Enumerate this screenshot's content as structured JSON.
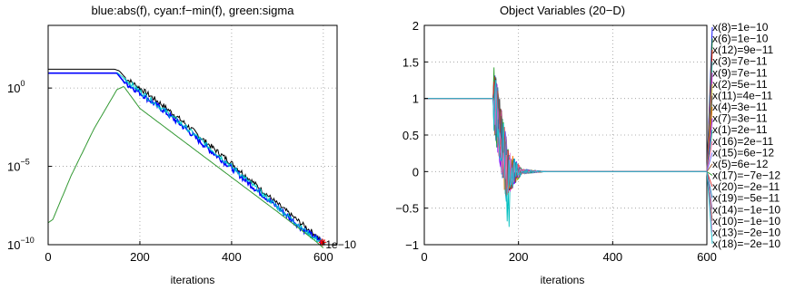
{
  "chart_data": [
    {
      "type": "line",
      "title": "blue:abs(f), cyan:f−min(f), green:sigma",
      "xlabel": "iterations",
      "ylabel": "",
      "yscale": "log",
      "xlim": [
        0,
        630
      ],
      "ylim_exponents": [
        -10,
        4
      ],
      "grid": true,
      "x_ticks": [
        {
          "value": 0,
          "label": "0"
        },
        {
          "value": 200,
          "label": "200"
        },
        {
          "value": 400,
          "label": "400"
        },
        {
          "value": 600,
          "label": "600"
        }
      ],
      "y_ticks": [
        {
          "exp": 0,
          "base": "10",
          "sup": "0"
        },
        {
          "exp": -5,
          "base": "10",
          "sup": "−5"
        },
        {
          "exp": -10,
          "base": "10",
          "sup": "−10"
        }
      ],
      "annotation": {
        "text": "1e−10",
        "x": 605,
        "exp": -10
      },
      "series": [
        {
          "color": "#000000",
          "points": [
            [
              0,
              1.2
            ],
            [
              145,
              1.2
            ],
            [
              155,
              1.1
            ],
            [
              170,
              0.6
            ],
            [
              200,
              0.0
            ],
            [
              250,
              -1.1
            ],
            [
              300,
              -2.3
            ],
            [
              350,
              -3.6
            ],
            [
              400,
              -4.8
            ],
            [
              450,
              -6.1
            ],
            [
              500,
              -7.4
            ],
            [
              550,
              -8.6
            ],
            [
              580,
              -9.3
            ],
            [
              600,
              -9.9
            ]
          ]
        },
        {
          "color": "#0000ff",
          "points": [
            [
              0,
              0.95
            ],
            [
              150,
              0.95
            ],
            [
              165,
              0.4
            ],
            [
              200,
              -0.3
            ],
            [
              250,
              -1.4
            ],
            [
              300,
              -2.6
            ],
            [
              350,
              -3.9
            ],
            [
              400,
              -5.1
            ],
            [
              450,
              -6.4
            ],
            [
              500,
              -7.6
            ],
            [
              550,
              -8.9
            ],
            [
              580,
              -9.5
            ],
            [
              600,
              -9.9
            ]
          ]
        },
        {
          "color": "#00cccc",
          "points": [
            [
              150,
              1.0
            ],
            [
              200,
              -0.2
            ],
            [
              300,
              -2.5
            ],
            [
              400,
              -5.0
            ],
            [
              500,
              -7.6
            ],
            [
              580,
              -9.6
            ],
            [
              605,
              -9.9
            ]
          ]
        },
        {
          "color": "#339933",
          "points": [
            [
              0,
              -8.6
            ],
            [
              10,
              -8.4
            ],
            [
              50,
              -5.6
            ],
            [
              100,
              -2.6
            ],
            [
              150,
              -0.1
            ],
            [
              165,
              0.1
            ],
            [
              200,
              -1.3
            ],
            [
              300,
              -3.5
            ],
            [
              400,
              -5.7
            ],
            [
              500,
              -7.9
            ],
            [
              580,
              -9.7
            ],
            [
              600,
              -10.2
            ]
          ]
        }
      ]
    },
    {
      "type": "line",
      "title": "Object Variables (20−D)",
      "xlabel": "iterations",
      "ylabel": "",
      "xlim": [
        0,
        600
      ],
      "ylim": [
        -1,
        2
      ],
      "grid": true,
      "x_ticks": [
        {
          "value": 0,
          "label": "0"
        },
        {
          "value": 200,
          "label": "200"
        },
        {
          "value": 400,
          "label": "400"
        },
        {
          "value": 600,
          "label": "600"
        }
      ],
      "y_ticks": [
        {
          "value": 2,
          "label": "2"
        },
        {
          "value": 1.5,
          "label": "1.5"
        },
        {
          "value": 1,
          "label": "1"
        },
        {
          "value": 0.5,
          "label": "0.5"
        },
        {
          "value": 0,
          "label": "0"
        },
        {
          "value": -0.5,
          "label": "−0.5"
        },
        {
          "value": -1,
          "label": "−1"
        }
      ],
      "variable_labels": [
        "x(8)=1e−10",
        "x(6)=1e−10",
        "x(12)=9e−11",
        "x(3)=7e−11",
        "x(9)=7e−11",
        "x(2)=5e−11",
        "x(11)=4e−11",
        "x(4)=3e−11",
        "x(7)=3e−11",
        "x(1)=2e−11",
        "x(16)=2e−11",
        "x(15)=6e−12",
        "x(5)=6e−12",
        "x(17)=−7e−12",
        "x(20)=−2e−11",
        "x(19)=−5e−11",
        "x(14)=−1e−10",
        "x(10)=−1e−10",
        "x(13)=−2e−10",
        "x(18)=−2e−10"
      ],
      "series_colors": [
        "#0000ff",
        "#008000",
        "#ff0000",
        "#00bfbf",
        "#bf00bf",
        "#bfbf00",
        "#404040",
        "#ff7f00",
        "#7f00ff",
        "#00a86b",
        "#ff4fa0",
        "#6f6fff",
        "#a05a2c",
        "#2ca02c",
        "#d62728",
        "#1f77b4",
        "#9467bd",
        "#8c564b",
        "#e377c2",
        "#17becf"
      ]
    }
  ]
}
